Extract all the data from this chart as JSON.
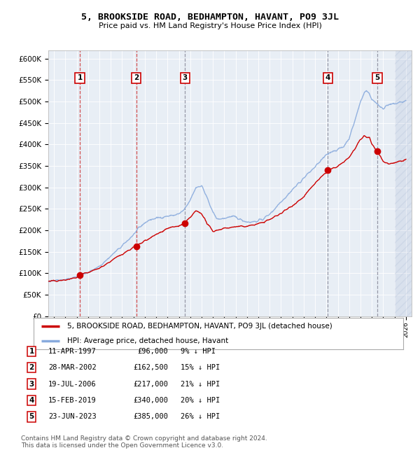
{
  "title": "5, BROOKSIDE ROAD, BEDHAMPTON, HAVANT, PO9 3JL",
  "subtitle": "Price paid vs. HM Land Registry's House Price Index (HPI)",
  "ylim": [
    0,
    620000
  ],
  "yticks": [
    0,
    50000,
    100000,
    150000,
    200000,
    250000,
    300000,
    350000,
    400000,
    450000,
    500000,
    550000,
    600000
  ],
  "xlim_start": 1994.5,
  "xlim_end": 2026.5,
  "sales": [
    {
      "num": 1,
      "date_year": 1997.277,
      "price": 96000,
      "pct": "9%",
      "label": "11-APR-1997",
      "price_label": "£96,000",
      "vline_red": true
    },
    {
      "num": 2,
      "date_year": 2002.238,
      "price": 162500,
      "pct": "15%",
      "label": "28-MAR-2002",
      "price_label": "£162,500",
      "vline_red": true
    },
    {
      "num": 3,
      "date_year": 2006.548,
      "price": 217000,
      "pct": "21%",
      "label": "19-JUL-2006",
      "price_label": "£217,000",
      "vline_red": false
    },
    {
      "num": 4,
      "date_year": 2019.12,
      "price": 340000,
      "pct": "20%",
      "label": "15-FEB-2019",
      "price_label": "£340,000",
      "vline_red": false
    },
    {
      "num": 5,
      "date_year": 2023.477,
      "price": 385000,
      "pct": "26%",
      "label": "23-JUN-2023",
      "price_label": "£385,000",
      "vline_red": false
    }
  ],
  "legend_property_label": "5, BROOKSIDE ROAD, BEDHAMPTON, HAVANT, PO9 3JL (detached house)",
  "legend_hpi_label": "HPI: Average price, detached house, Havant",
  "footer": "Contains HM Land Registry data © Crown copyright and database right 2024.\nThis data is licensed under the Open Government Licence v3.0.",
  "property_line_color": "#cc0000",
  "hpi_line_color": "#88aadd",
  "plot_bg_color": "#e8eef5",
  "sale_marker_color": "#cc0000",
  "vline_red_color": "#cc3333",
  "vline_gray_color": "#888899",
  "box_edge_color": "#cc0000",
  "hpi_anchors_x": [
    1994.0,
    1994.5,
    1995.0,
    1995.5,
    1996.0,
    1996.5,
    1997.0,
    1997.5,
    1998.0,
    1998.5,
    1999.0,
    1999.5,
    2000.0,
    2000.5,
    2001.0,
    2001.5,
    2002.0,
    2002.5,
    2003.0,
    2003.5,
    2004.0,
    2004.5,
    2005.0,
    2005.5,
    2006.0,
    2006.5,
    2007.0,
    2007.5,
    2008.0,
    2008.5,
    2009.0,
    2009.5,
    2010.0,
    2010.5,
    2011.0,
    2011.5,
    2012.0,
    2012.5,
    2013.0,
    2013.5,
    2014.0,
    2014.5,
    2015.0,
    2015.5,
    2016.0,
    2016.5,
    2017.0,
    2017.5,
    2018.0,
    2018.5,
    2019.0,
    2019.5,
    2020.0,
    2020.5,
    2021.0,
    2021.5,
    2022.0,
    2022.3,
    2022.5,
    2022.8,
    2023.0,
    2023.3,
    2023.5,
    2023.8,
    2024.0,
    2024.3,
    2024.6,
    2024.9,
    2025.2,
    2025.5,
    2025.8,
    2026.0
  ],
  "hpi_anchors_y": [
    82000,
    83000,
    84000,
    85000,
    86000,
    88000,
    91000,
    97000,
    103000,
    108000,
    116000,
    128000,
    140000,
    152000,
    163000,
    177000,
    190000,
    205000,
    218000,
    225000,
    228000,
    231000,
    233000,
    235000,
    238000,
    248000,
    270000,
    300000,
    305000,
    275000,
    240000,
    225000,
    228000,
    232000,
    230000,
    225000,
    220000,
    220000,
    222000,
    228000,
    238000,
    252000,
    268000,
    280000,
    295000,
    308000,
    322000,
    335000,
    348000,
    362000,
    375000,
    385000,
    388000,
    395000,
    415000,
    455000,
    500000,
    520000,
    525000,
    518000,
    505000,
    500000,
    492000,
    488000,
    485000,
    490000,
    492000,
    494000,
    496000,
    498000,
    500000,
    502000
  ],
  "prop_anchors_x": [
    1994.0,
    1995.0,
    1996.0,
    1997.0,
    1997.277,
    1998.0,
    1999.0,
    2000.0,
    2001.0,
    2002.0,
    2002.238,
    2003.0,
    2004.0,
    2005.0,
    2006.0,
    2006.548,
    2007.0,
    2007.5,
    2008.0,
    2008.5,
    2009.0,
    2010.0,
    2011.0,
    2012.0,
    2013.0,
    2014.0,
    2015.0,
    2016.0,
    2017.0,
    2018.0,
    2019.0,
    2019.12,
    2020.0,
    2021.0,
    2021.5,
    2022.0,
    2022.3,
    2022.8,
    2023.0,
    2023.477,
    2023.8,
    2024.0,
    2024.5,
    2025.0,
    2026.0
  ],
  "prop_anchors_y": [
    80000,
    82000,
    84000,
    90000,
    96000,
    101000,
    112000,
    128000,
    145000,
    160000,
    162500,
    175000,
    190000,
    205000,
    210000,
    217000,
    230000,
    245000,
    240000,
    215000,
    198000,
    205000,
    208000,
    210000,
    215000,
    225000,
    240000,
    258000,
    278000,
    310000,
    335000,
    340000,
    348000,
    370000,
    390000,
    410000,
    420000,
    415000,
    400000,
    385000,
    370000,
    360000,
    355000,
    358000,
    365000
  ]
}
